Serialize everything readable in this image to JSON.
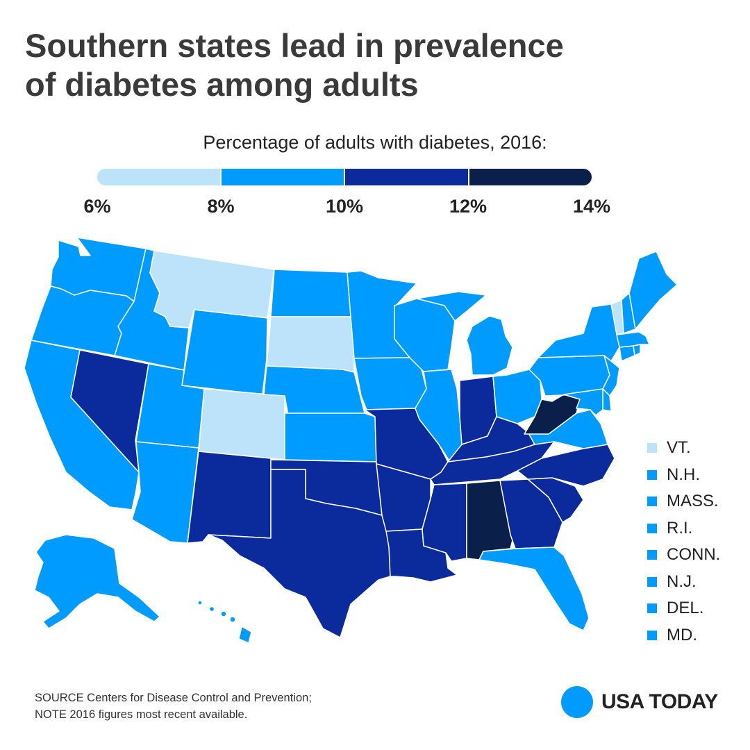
{
  "title_line1": "Southern states lead in prevalence",
  "title_line2": "of diabetes among adults",
  "legend_title": "Percentage of adults with diabetes, 2016:",
  "scale": {
    "ticks": [
      "6%",
      "8%",
      "10%",
      "12%",
      "14%"
    ],
    "bins": [
      {
        "min": 6,
        "max": 8,
        "color": "#bde3fb"
      },
      {
        "min": 8,
        "max": 10,
        "color": "#009bff"
      },
      {
        "min": 10,
        "max": 12,
        "color": "#0b2a9b"
      },
      {
        "min": 12,
        "max": 14,
        "color": "#0b1f4b"
      }
    ]
  },
  "map": {
    "bins_by_state": {
      "WA": 1,
      "OR": 1,
      "CA": 1,
      "NV": 2,
      "ID": 1,
      "MT": 0,
      "WY": 1,
      "UT": 1,
      "CO": 0,
      "AZ": 1,
      "NM": 2,
      "ND": 1,
      "SD": 0,
      "NE": 1,
      "KS": 1,
      "OK": 2,
      "TX": 2,
      "MN": 1,
      "IA": 1,
      "MO": 2,
      "AR": 2,
      "LA": 2,
      "WI": 1,
      "IL": 1,
      "MI": 1,
      "IN": 2,
      "OH": 1,
      "KY": 2,
      "TN": 2,
      "MS": 2,
      "AL": 3,
      "GA": 2,
      "FL": 1,
      "SC": 2,
      "NC": 2,
      "VA": 1,
      "WV": 3,
      "PA": 1,
      "NY": 1,
      "ME": 1,
      "VT": 0,
      "NH": 1,
      "MA": 1,
      "RI": 1,
      "CT": 1,
      "NJ": 1,
      "DE": 1,
      "MD": 1,
      "AK": 1,
      "HI": 1
    }
  },
  "small_states": [
    {
      "label": "VT.",
      "bin": 0
    },
    {
      "label": "N.H.",
      "bin": 1
    },
    {
      "label": "MASS.",
      "bin": 1
    },
    {
      "label": "R.I.",
      "bin": 1
    },
    {
      "label": "CONN.",
      "bin": 1
    },
    {
      "label": "N.J.",
      "bin": 1
    },
    {
      "label": "DEL.",
      "bin": 1
    },
    {
      "label": "MD.",
      "bin": 1
    }
  ],
  "source_line1": "SOURCE Centers for Disease Control and Prevention;",
  "source_line2": "NOTE 2016 figures most recent available.",
  "brand": "USA TODAY",
  "colors": {
    "brand_blue": "#009bff",
    "title": "#3a3a3a"
  }
}
